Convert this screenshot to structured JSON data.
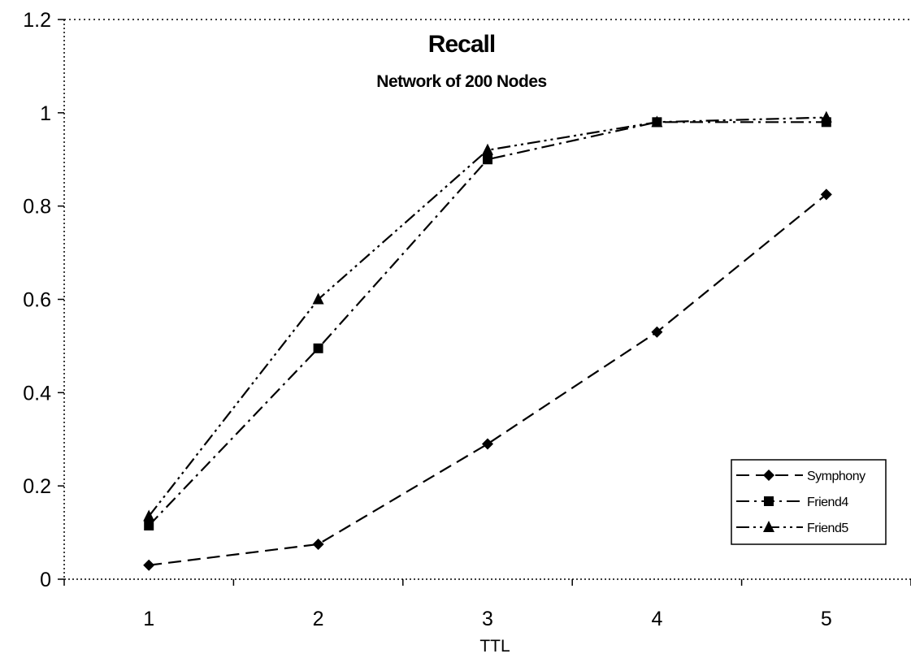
{
  "chart_data": {
    "type": "line",
    "title": "Recall",
    "subtitle": "Network of 200 Nodes",
    "xlabel": "TTL",
    "ylabel": "",
    "categories": [
      "1",
      "2",
      "3",
      "4",
      "5"
    ],
    "ylim": [
      0,
      1.2
    ],
    "yticks": [
      "0",
      "0.2",
      "0.4",
      "0.6",
      "0.8",
      "1",
      "1.2"
    ],
    "legend_position": "bottom-right",
    "series": [
      {
        "name": "Symphony",
        "marker": "diamond",
        "dash": "dashed",
        "values": [
          0.03,
          0.075,
          0.29,
          0.53,
          0.825
        ]
      },
      {
        "name": "Friend4",
        "marker": "square",
        "dash": "dash-dot",
        "values": [
          0.115,
          0.495,
          0.9,
          0.98,
          0.98
        ]
      },
      {
        "name": "Friend5",
        "marker": "triangle",
        "dash": "dash-dot-dot",
        "values": [
          0.135,
          0.6,
          0.92,
          0.98,
          0.99
        ]
      }
    ]
  }
}
